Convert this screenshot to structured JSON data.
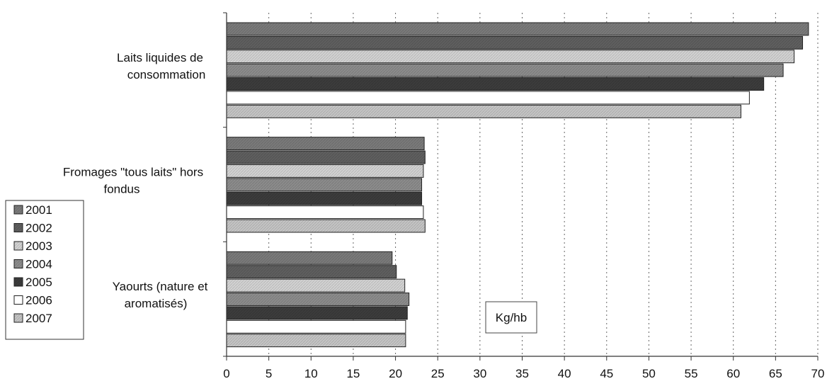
{
  "chart_data": {
    "type": "bar",
    "orientation": "horizontal",
    "categories": [
      [
        "Laits liquides de",
        "consommation"
      ],
      [
        "Fromages \"tous laits\" hors",
        "fondus"
      ],
      [
        "Yaourts (nature et",
        "aromatisés)"
      ]
    ],
    "series": [
      {
        "name": "2001",
        "values": [
          68.9,
          23.4,
          19.6
        ],
        "color": "#7a7a7a"
      },
      {
        "name": "2002",
        "values": [
          68.2,
          23.5,
          20.1
        ],
        "color": "#5f5f5f"
      },
      {
        "name": "2003",
        "values": [
          67.2,
          23.3,
          21.1
        ],
        "color": "#d2d2d2"
      },
      {
        "name": "2004",
        "values": [
          65.9,
          23.1,
          21.6
        ],
        "color": "#8c8c8c"
      },
      {
        "name": "2005",
        "values": [
          63.6,
          23.1,
          21.4
        ],
        "color": "#3c3c3c"
      },
      {
        "name": "2006",
        "values": [
          61.9,
          23.3,
          21.2
        ],
        "color": "#ffffff"
      },
      {
        "name": "2007",
        "values": [
          60.9,
          23.5,
          21.2
        ],
        "color": "#c4c4c4"
      }
    ],
    "xlim": [
      0,
      70
    ],
    "x_ticks": [
      "0",
      "5",
      "10",
      "15",
      "20",
      "25",
      "30",
      "35",
      "40",
      "45",
      "50",
      "55",
      "60",
      "65",
      "70"
    ],
    "grid": "vertical dashed",
    "legend_position": "left",
    "annotation": "Kg/hb",
    "title": "",
    "xlabel": "",
    "ylabel": ""
  }
}
